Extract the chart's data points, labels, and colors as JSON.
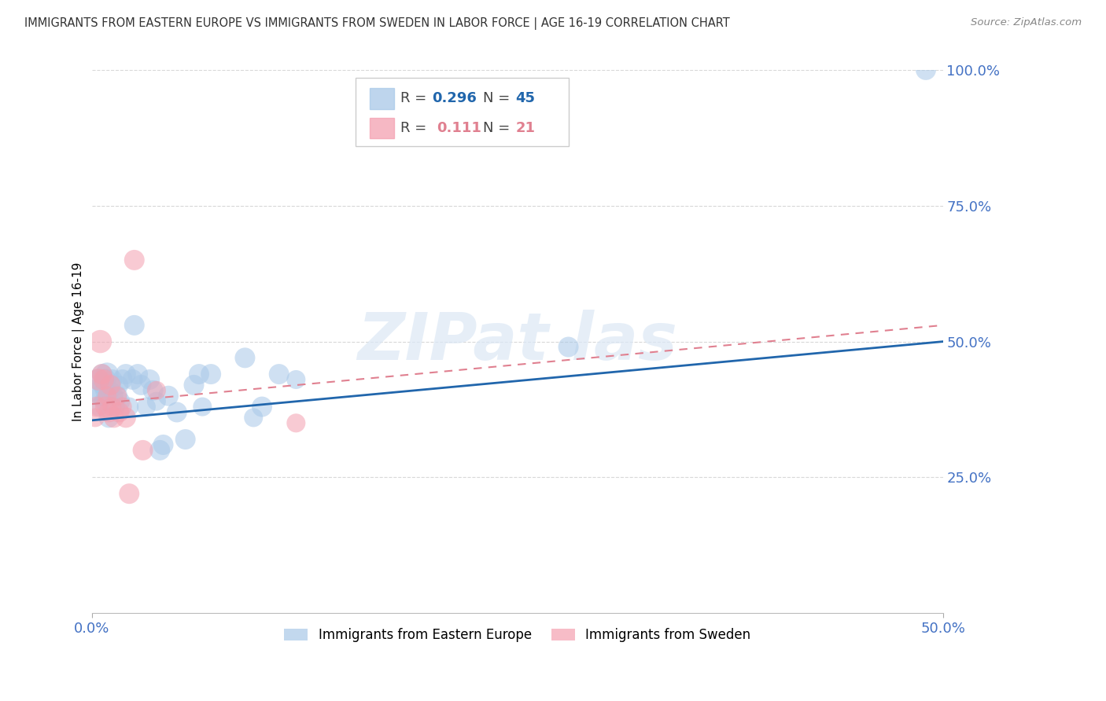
{
  "title": "IMMIGRANTS FROM EASTERN EUROPE VS IMMIGRANTS FROM SWEDEN IN LABOR FORCE | AGE 16-19 CORRELATION CHART",
  "source": "Source: ZipAtlas.com",
  "ylabel": "In Labor Force | Age 16-19",
  "xlim": [
    0.0,
    0.5
  ],
  "ylim": [
    0.0,
    1.0
  ],
  "ytick_values": [
    0.25,
    0.5,
    0.75,
    1.0
  ],
  "xtick_values": [
    0.0,
    0.5
  ],
  "blue_R": 0.296,
  "blue_N": 45,
  "pink_R": 0.111,
  "pink_N": 21,
  "blue_color": "#a8c8e8",
  "pink_color": "#f4a0b0",
  "blue_line_color": "#2166ac",
  "pink_line_color": "#e08090",
  "blue_scatter_x": [
    0.002,
    0.003,
    0.004,
    0.005,
    0.006,
    0.006,
    0.007,
    0.008,
    0.008,
    0.009,
    0.01,
    0.011,
    0.012,
    0.013,
    0.014,
    0.015,
    0.016,
    0.017,
    0.018,
    0.02,
    0.022,
    0.024,
    0.025,
    0.027,
    0.029,
    0.032,
    0.034,
    0.036,
    0.038,
    0.04,
    0.042,
    0.045,
    0.05,
    0.055,
    0.06,
    0.063,
    0.065,
    0.07,
    0.09,
    0.095,
    0.1,
    0.11,
    0.12,
    0.28,
    0.49
  ],
  "blue_scatter_y": [
    0.41,
    0.43,
    0.38,
    0.4,
    0.42,
    0.44,
    0.39,
    0.43,
    0.41,
    0.44,
    0.36,
    0.41,
    0.43,
    0.4,
    0.38,
    0.4,
    0.42,
    0.39,
    0.43,
    0.44,
    0.38,
    0.43,
    0.53,
    0.44,
    0.42,
    0.38,
    0.43,
    0.41,
    0.39,
    0.3,
    0.31,
    0.4,
    0.37,
    0.32,
    0.42,
    0.44,
    0.38,
    0.44,
    0.47,
    0.36,
    0.38,
    0.44,
    0.43,
    0.49,
    1.0
  ],
  "blue_scatter_size": [
    400,
    350,
    300,
    350,
    300,
    350,
    300,
    400,
    350,
    450,
    350,
    300,
    350,
    300,
    300,
    350,
    300,
    300,
    350,
    350,
    300,
    350,
    350,
    350,
    350,
    300,
    350,
    350,
    300,
    350,
    350,
    350,
    350,
    350,
    350,
    350,
    300,
    350,
    350,
    300,
    350,
    350,
    300,
    350,
    350
  ],
  "pink_scatter_x": [
    0.002,
    0.003,
    0.004,
    0.005,
    0.006,
    0.007,
    0.008,
    0.009,
    0.01,
    0.011,
    0.012,
    0.013,
    0.015,
    0.016,
    0.018,
    0.02,
    0.022,
    0.025,
    0.03,
    0.038,
    0.12
  ],
  "pink_scatter_y": [
    0.36,
    0.38,
    0.43,
    0.5,
    0.44,
    0.43,
    0.38,
    0.4,
    0.37,
    0.42,
    0.38,
    0.36,
    0.4,
    0.37,
    0.38,
    0.36,
    0.22,
    0.65,
    0.3,
    0.41,
    0.35
  ],
  "pink_scatter_size": [
    300,
    350,
    400,
    450,
    350,
    350,
    350,
    300,
    350,
    350,
    300,
    350,
    300,
    350,
    300,
    350,
    350,
    350,
    350,
    300,
    300
  ],
  "blue_line_x": [
    0.0,
    0.5
  ],
  "blue_line_y": [
    0.355,
    0.5
  ],
  "pink_line_x": [
    0.0,
    0.5
  ],
  "pink_line_y": [
    0.385,
    0.53
  ],
  "grid_color": "#d8d8d8",
  "axis_label_color": "#4472c4",
  "title_color": "#333333",
  "legend_label1": "Immigrants from Eastern Europe",
  "legend_label2": "Immigrants from Sweden",
  "watermark_text": "ZIPat las"
}
